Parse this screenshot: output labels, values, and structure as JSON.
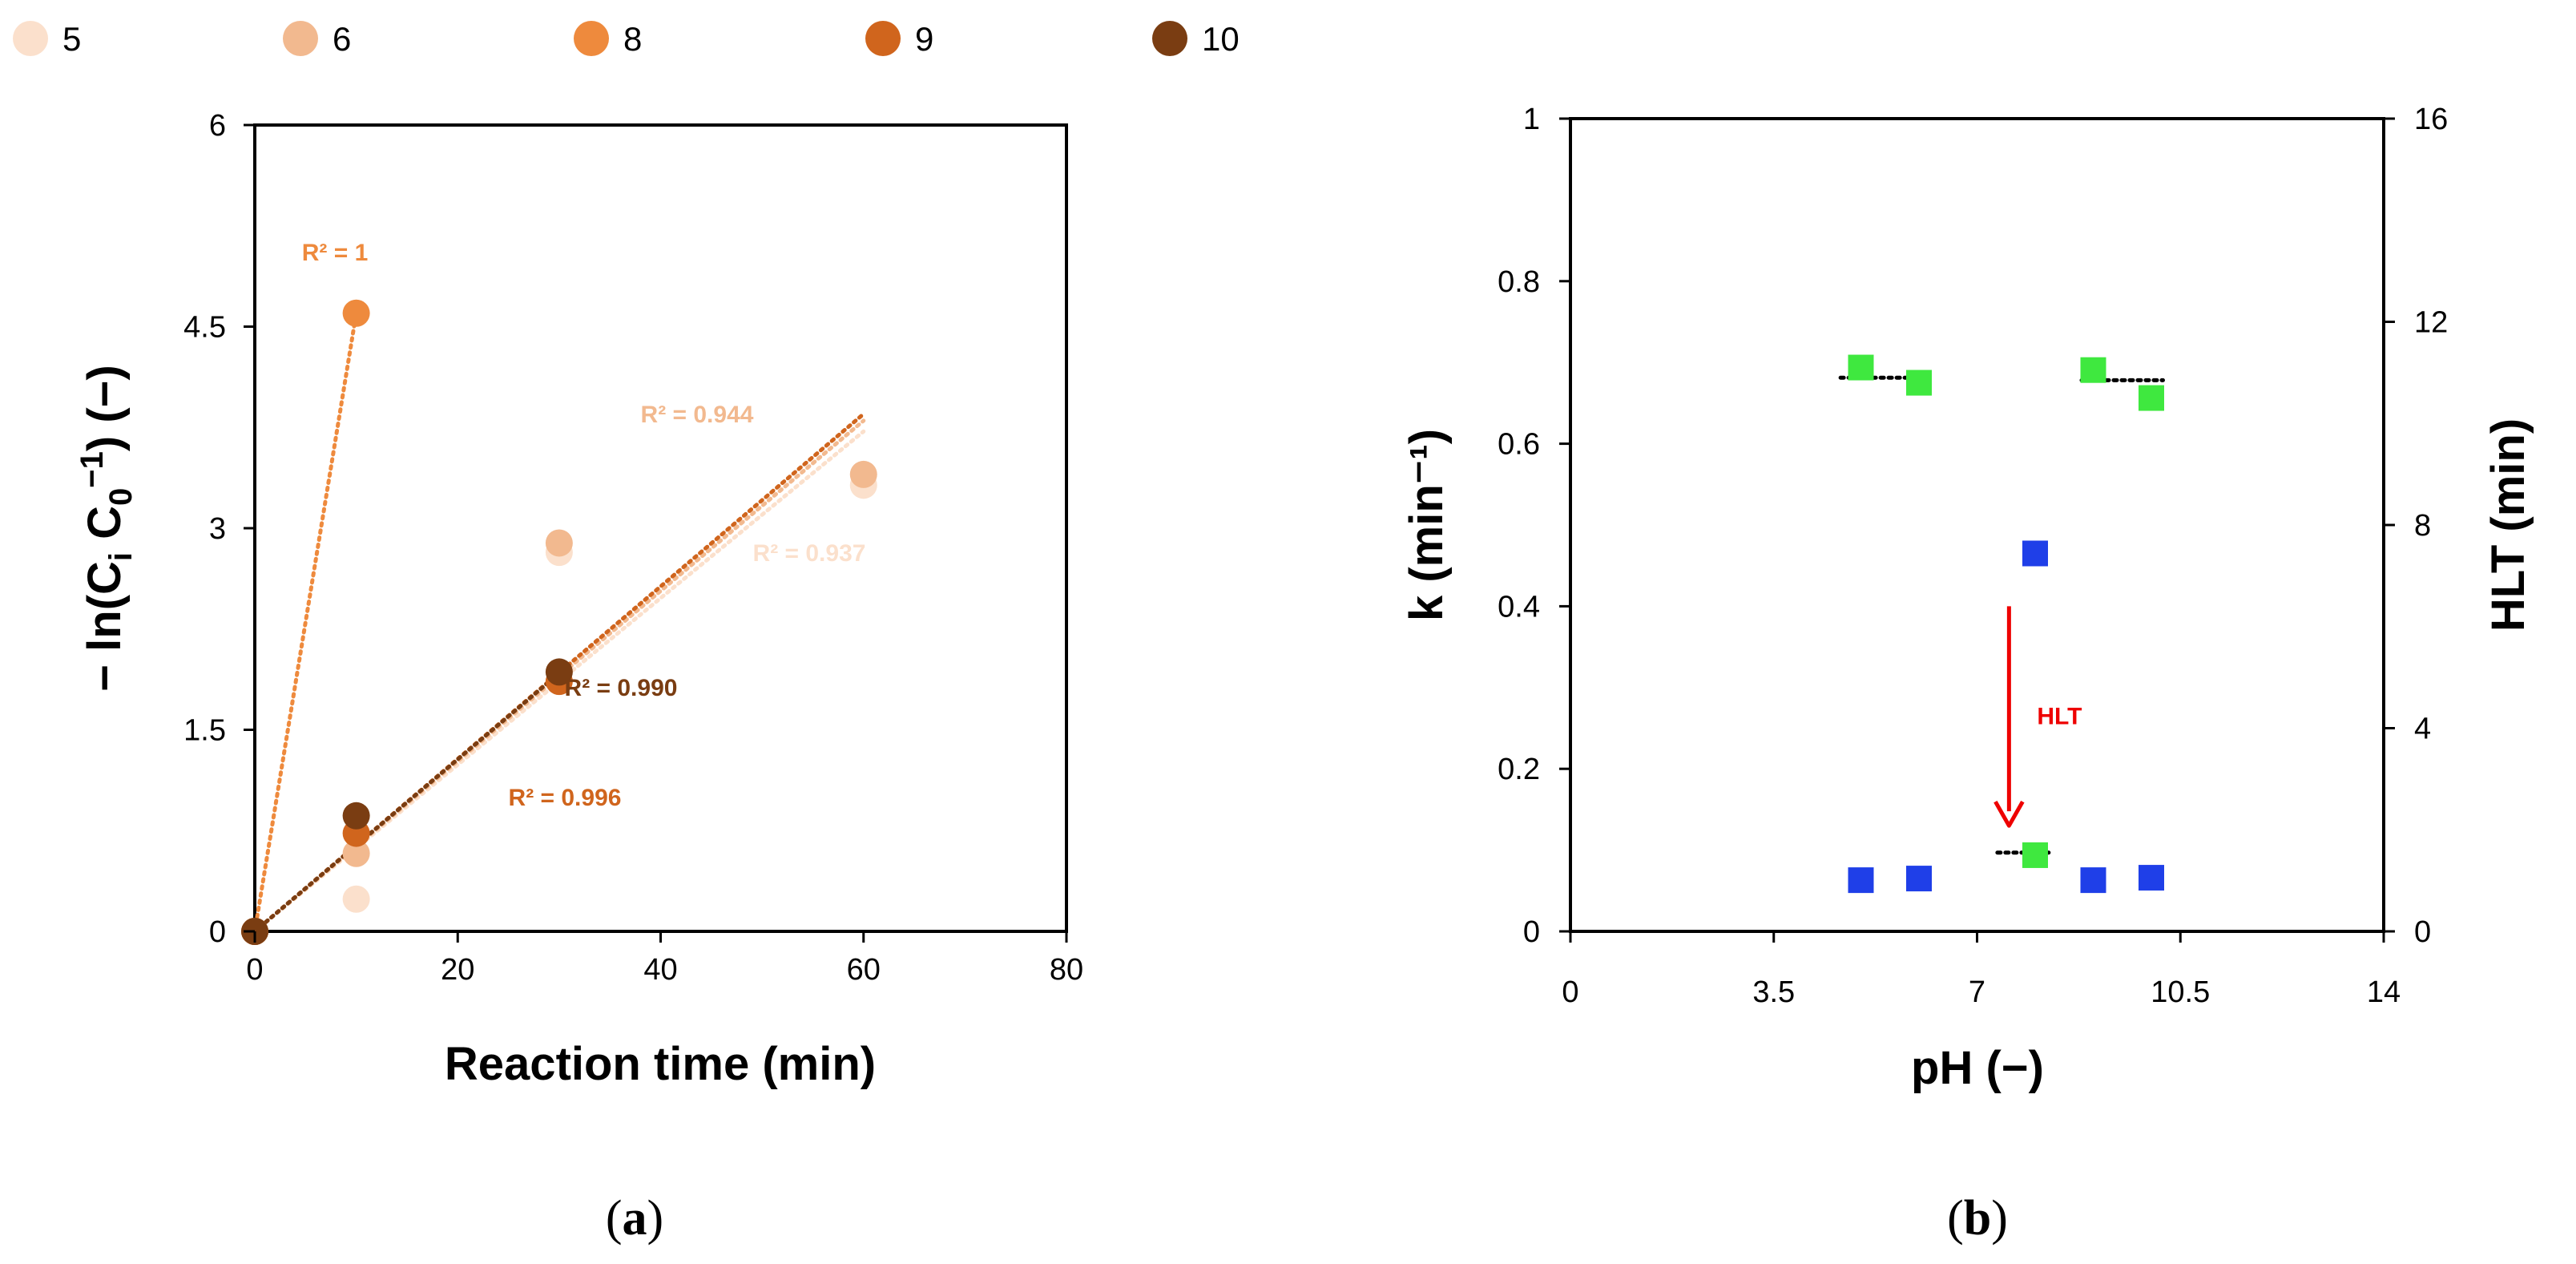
{
  "chart_data": [
    {
      "id": "a",
      "type": "scatter",
      "caption": "a",
      "xlabel": "Reaction time (min)",
      "ylabel": "− ln(C_i C_0^−1) (−)",
      "xlim": [
        0,
        80
      ],
      "ylim": [
        0,
        6
      ],
      "xticks": [
        "0",
        "20",
        "40",
        "60",
        "80"
      ],
      "yticks": [
        "0",
        "1.5",
        "3",
        "4.5",
        "6"
      ],
      "legend_position": "top",
      "series": [
        {
          "name": "5",
          "color": "#fbe0cc",
          "x": [
            0,
            10,
            30,
            60
          ],
          "y": [
            0,
            0.24,
            2.82,
            3.32
          ],
          "trendline": {
            "x": [
              0,
              60
            ],
            "y": [
              0,
              3.72
            ]
          },
          "r2_label": "R² = 0.937"
        },
        {
          "name": "6",
          "color": "#f2b98f",
          "x": [
            0,
            10,
            30,
            60
          ],
          "y": [
            0,
            0.58,
            2.89,
            3.4
          ],
          "trendline": {
            "x": [
              0,
              60
            ],
            "y": [
              0,
              3.8
            ]
          },
          "r2_label": "R² = 0.944"
        },
        {
          "name": "8",
          "color": "#ee8a3d",
          "x": [
            0,
            10
          ],
          "y": [
            0,
            4.6
          ],
          "trendline": {
            "x": [
              0,
              10
            ],
            "y": [
              0,
              4.6
            ]
          },
          "r2_label": "R² = 1"
        },
        {
          "name": "9",
          "color": "#d0651d",
          "x": [
            0,
            10,
            30
          ],
          "y": [
            0,
            0.73,
            1.86
          ],
          "trendline": {
            "x": [
              0,
              60
            ],
            "y": [
              0,
              3.85
            ]
          },
          "r2_label": "R² = 0.996"
        },
        {
          "name": "10",
          "color": "#7a3d12",
          "x": [
            0,
            10,
            30
          ],
          "y": [
            0,
            0.86,
            1.93
          ],
          "trendline": {
            "x": [
              0,
              30
            ],
            "y": [
              0,
              1.92
            ]
          },
          "r2_label": "R² = 0.990"
        }
      ]
    },
    {
      "id": "b",
      "type": "scatter",
      "caption": "b",
      "xlabel": "pH (−)",
      "ylabel": "k (min⁻¹)",
      "y2label": "HLT (min)",
      "xlim": [
        0,
        14
      ],
      "ylim": [
        0,
        1
      ],
      "y2lim": [
        0,
        16
      ],
      "xticks": [
        "0",
        "3.5",
        "7",
        "10.5",
        "14"
      ],
      "yticks": [
        "0",
        "0.2",
        "0.4",
        "0.6",
        "0.8",
        "1"
      ],
      "y2ticks": [
        "0",
        "4",
        "8",
        "12",
        "16"
      ],
      "series": [
        {
          "name": "k",
          "axis": "left",
          "color": "#1f3fe8",
          "marker": "square",
          "x": [
            5,
            6,
            8,
            9,
            10
          ],
          "y": [
            0.063,
            0.065,
            0.465,
            0.063,
            0.066
          ]
        },
        {
          "name": "HLT",
          "axis": "right",
          "color": "#3fe83f",
          "marker": "square",
          "x": [
            5,
            6,
            8,
            9,
            10
          ],
          "y": [
            11.1,
            10.8,
            1.5,
            11.05,
            10.5
          ]
        }
      ],
      "mean_lines": [
        {
          "axis": "right",
          "x": [
            4.65,
            6.0
          ],
          "y": 10.9
        },
        {
          "axis": "right",
          "x": [
            7.35,
            8.3
          ],
          "y": 1.55
        },
        {
          "axis": "right",
          "x": [
            8.8,
            10.2
          ],
          "y": 10.85
        }
      ],
      "annotation": {
        "text": "HLT",
        "arrow_x": 7.55,
        "arrow_y_from": 0.4,
        "arrow_y_to": 0.13
      }
    }
  ]
}
